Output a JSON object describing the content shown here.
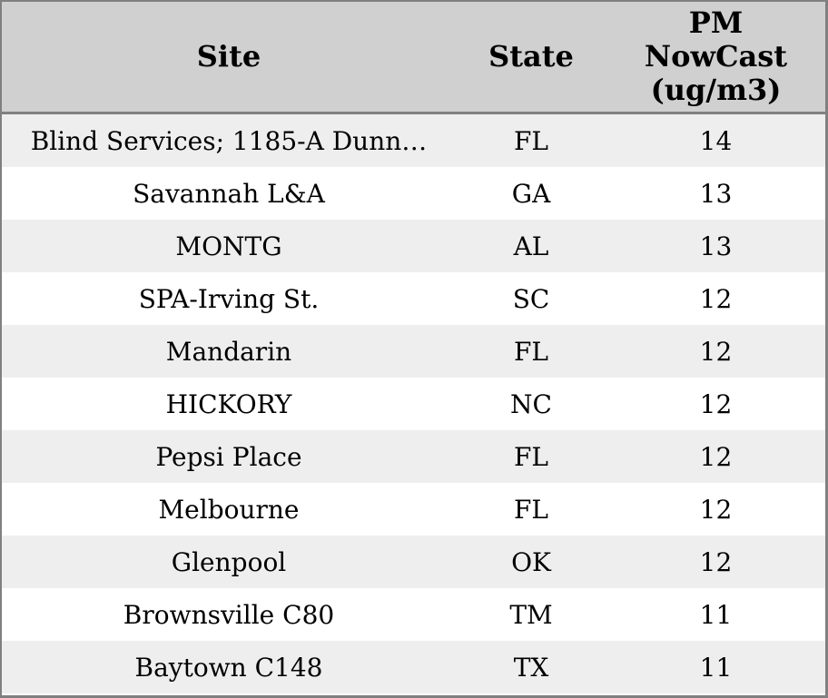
{
  "chart_data": {
    "type": "table",
    "title": "",
    "columns": [
      "Site",
      "State",
      "PM NowCast (ug/m3)"
    ],
    "rows": [
      [
        "Blind Services; 1185-A Dunn…",
        "FL",
        14
      ],
      [
        "Savannah L&A",
        "GA",
        13
      ],
      [
        "MONTG",
        "AL",
        13
      ],
      [
        "SPA-Irving St.",
        "SC",
        12
      ],
      [
        "Mandarin",
        "FL",
        12
      ],
      [
        "HICKORY",
        "NC",
        12
      ],
      [
        "Pepsi Place",
        "FL",
        12
      ],
      [
        "Melbourne",
        "FL",
        12
      ],
      [
        "Glenpool",
        "OK",
        12
      ],
      [
        "Brownsville C80",
        "TM",
        11
      ],
      [
        "Baytown C148",
        "TX",
        11
      ]
    ],
    "layout_hints": {
      "header_lines_col3": [
        "PM",
        "NowCast",
        "(ug/m3)"
      ],
      "zebra_striping": true,
      "text_align": "center"
    }
  },
  "table": {
    "header": {
      "site": "Site",
      "state": "State",
      "pm_nowcast": "PM\nNowCast\n(ug/m3)"
    }
  },
  "colors": {
    "header_bg": "#d0d0d0",
    "row_odd_bg": "#eeeeee",
    "row_even_bg": "#ffffff",
    "border": "#808080",
    "text": "#000000"
  }
}
